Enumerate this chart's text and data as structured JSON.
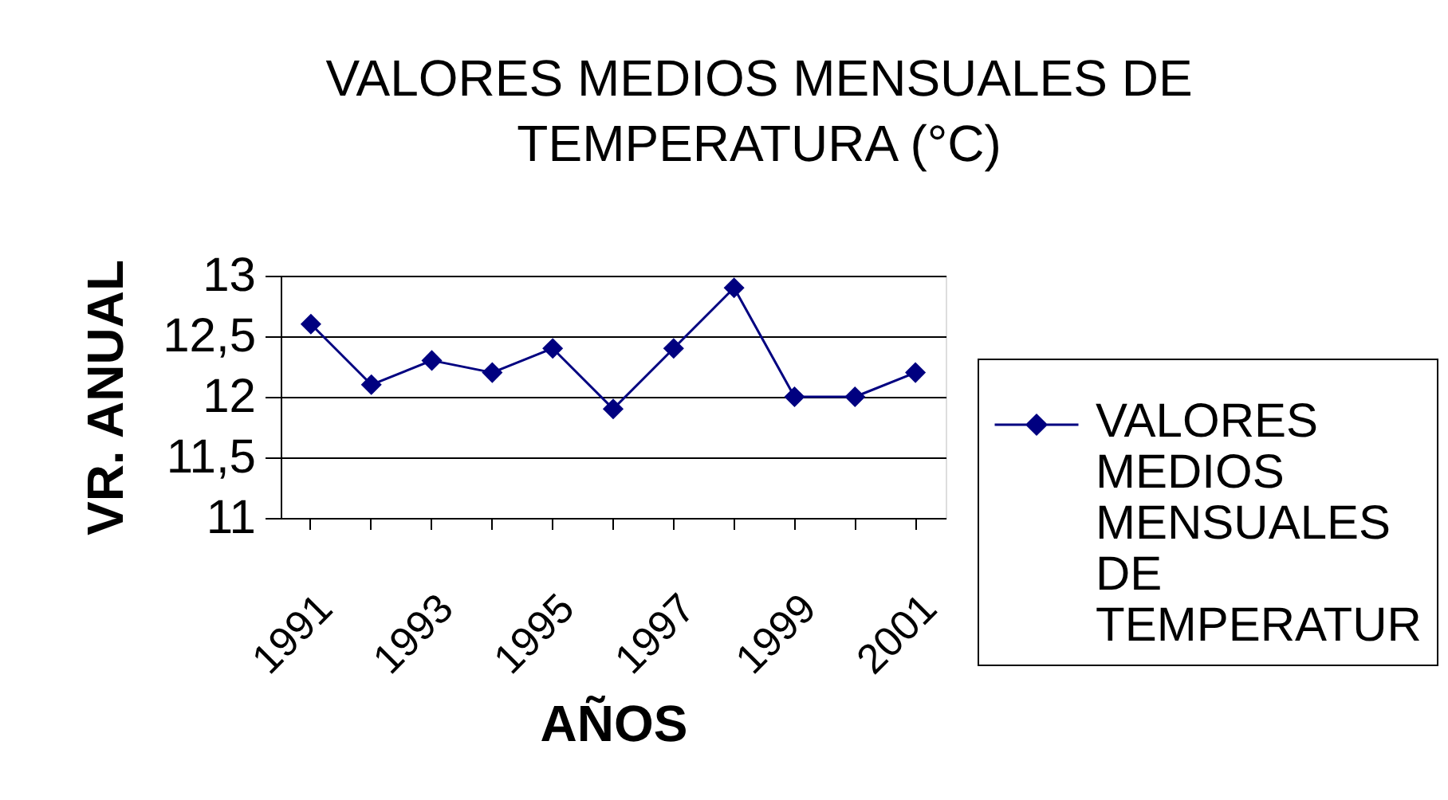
{
  "chart_data": {
    "type": "line",
    "title": "VALORES MEDIOS MENSUALES DE TEMPERATURA (°C)",
    "xlabel": "AÑOS",
    "ylabel": "VR. ANUAL",
    "categories": [
      "1991",
      null,
      "1993",
      null,
      "1995",
      null,
      "1997",
      null,
      "1999",
      null,
      "2001"
    ],
    "series": [
      {
        "name": "VALORES MEDIOS MENSUALES DE TEMPERATUR",
        "color": "#000080",
        "values": [
          12.6,
          12.1,
          12.3,
          12.2,
          12.4,
          11.9,
          12.4,
          12.9,
          12.0,
          12.0,
          12.2
        ]
      }
    ],
    "ylim": [
      11,
      13
    ],
    "yticks": [
      11,
      {
        "value": 11.5,
        "label": "11,5"
      },
      12,
      {
        "value": 12.5,
        "label": "12,5"
      },
      13
    ],
    "grid": "y",
    "legend": "right",
    "marker": "diamond",
    "line_style": "solid"
  }
}
